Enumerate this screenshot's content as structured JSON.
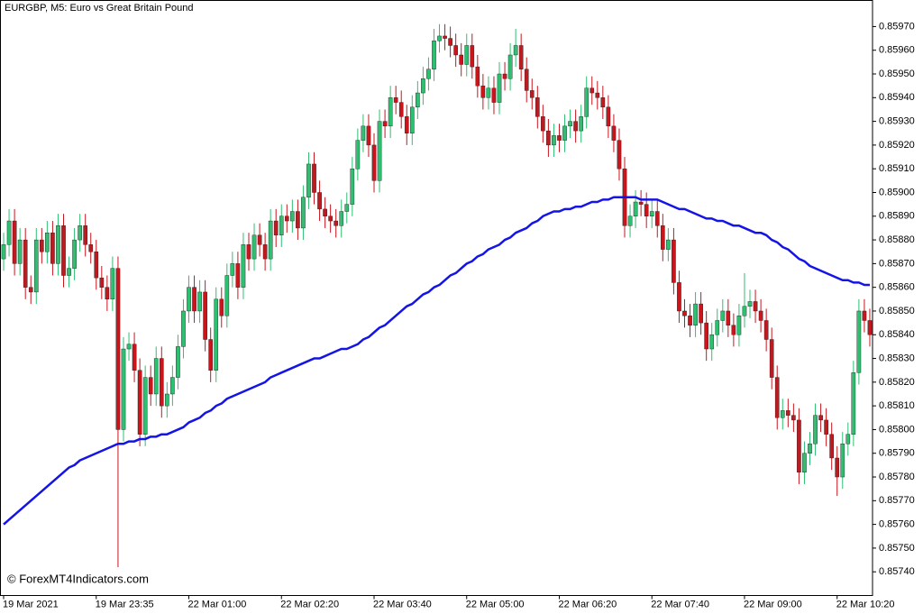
{
  "chart_data": {
    "type": "candlestick",
    "title": "EURGBP, M5:  Euro vs Great Britain Pound",
    "watermark": "© ForexMT4Indicators.com",
    "up_color": "#2fbf71",
    "down_color": "#c8161d",
    "ma_color": "#1414e6",
    "categories": [
      "19 Mar 2021",
      null,
      null,
      null,
      null,
      null,
      null,
      null,
      null,
      null,
      null,
      null,
      null,
      null,
      null,
      null,
      null,
      "19 Mar 23:35",
      null,
      null,
      null,
      null,
      null,
      null,
      null,
      null,
      null,
      null,
      null,
      null,
      null,
      null,
      null,
      null,
      "22 Mar 01:00",
      null,
      null,
      null,
      null,
      null,
      null,
      null,
      null,
      null,
      null,
      null,
      null,
      null,
      null,
      null,
      null,
      "22 Mar 02:20",
      null,
      null,
      null,
      null,
      null,
      null,
      null,
      null,
      null,
      null,
      null,
      null,
      null,
      null,
      null,
      null,
      "22 Mar 03:40",
      null,
      null,
      null,
      null,
      null,
      null,
      null,
      null,
      null,
      null,
      null,
      null,
      null,
      null,
      null,
      null,
      "22 Mar 05:00",
      null,
      null,
      null,
      null,
      null,
      null,
      null,
      null,
      null,
      null,
      null,
      null,
      null,
      null,
      null,
      null,
      "22 Mar 06:20",
      null,
      null,
      null,
      null,
      null,
      null,
      null,
      null,
      null,
      null,
      null,
      null,
      null,
      null,
      null,
      null,
      "22 Mar 07:40",
      null,
      null,
      null,
      null,
      null,
      null,
      null,
      null,
      null,
      null,
      null,
      null,
      null,
      null,
      null,
      null,
      "22 Mar 09:00",
      null,
      null,
      null,
      null,
      null,
      null,
      null,
      null,
      null,
      null,
      null,
      null,
      null,
      null,
      null,
      null,
      "22 Mar 10:20",
      null,
      null,
      null,
      null,
      null,
      null
    ],
    "open": [
      0.85872,
      0.85878,
      0.85888,
      0.8587,
      0.8588,
      0.8586,
      0.85858,
      0.8588,
      0.85875,
      0.85883,
      0.8587,
      0.85886,
      0.85865,
      0.85868,
      0.8588,
      0.85886,
      0.85878,
      0.85875,
      0.85864,
      0.8586,
      0.85855,
      0.85868,
      0.858,
      0.85834,
      0.85836,
      0.85825,
      0.85798,
      0.85822,
      0.85815,
      0.8583,
      0.8581,
      0.85815,
      0.85822,
      0.85835,
      0.8585,
      0.8586,
      0.8585,
      0.85858,
      0.85838,
      0.85825,
      0.85855,
      0.85848,
      0.85865,
      0.8587,
      0.8586,
      0.85878,
      0.85872,
      0.85882,
      0.85878,
      0.85872,
      0.85888,
      0.85882,
      0.8589,
      0.85888,
      0.85892,
      0.85885,
      0.85898,
      0.85912,
      0.859,
      0.85893,
      0.8589,
      0.85888,
      0.85886,
      0.85892,
      0.85895,
      0.8591,
      0.85922,
      0.85928,
      0.8592,
      0.85905,
      0.8593,
      0.85928,
      0.8594,
      0.85938,
      0.85932,
      0.85925,
      0.85936,
      0.85942,
      0.85948,
      0.85952,
      0.85964,
      0.85966,
      0.85965,
      0.85962,
      0.85958,
      0.85954,
      0.85962,
      0.85953,
      0.85945,
      0.8594,
      0.85944,
      0.85938,
      0.8595,
      0.85948,
      0.85958,
      0.85962,
      0.85952,
      0.85943,
      0.8594,
      0.85932,
      0.85926,
      0.8592,
      0.85924,
      0.85922,
      0.85928,
      0.8593,
      0.85926,
      0.85932,
      0.85944,
      0.85942,
      0.8594,
      0.85936,
      0.85928,
      0.85922,
      0.8591,
      0.85886,
      0.8589,
      0.85896,
      0.85895,
      0.8589,
      0.85892,
      0.85886,
      0.85876,
      0.8588,
      0.85862,
      0.8585,
      0.85848,
      0.85844,
      0.85853,
      0.85845,
      0.85834,
      0.8584,
      0.85846,
      0.8585,
      0.85844,
      0.8584,
      0.85848,
      0.85852,
      0.85854,
      0.8585,
      0.85846,
      0.85838,
      0.85822,
      0.85805,
      0.85808,
      0.85806,
      0.85804,
      0.85782,
      0.8579,
      0.85794,
      0.85806,
      0.85804,
      0.85798,
      0.85788,
      0.8578,
      0.85794,
      0.85798,
      0.85824,
      0.8585,
      0.85846
    ],
    "high": [
      0.85883,
      0.85893,
      0.85893,
      0.85885,
      0.85885,
      0.85865,
      0.85885,
      0.85885,
      0.85888,
      0.85888,
      0.85891,
      0.85891,
      0.85873,
      0.85885,
      0.85891,
      0.85891,
      0.85883,
      0.8588,
      0.85869,
      0.85865,
      0.85873,
      0.85873,
      0.85839,
      0.85841,
      0.85841,
      0.8583,
      0.85827,
      0.85827,
      0.85835,
      0.85835,
      0.8582,
      0.85827,
      0.8584,
      0.85855,
      0.85865,
      0.85865,
      0.85863,
      0.85863,
      0.85843,
      0.8586,
      0.8586,
      0.8587,
      0.85875,
      0.85875,
      0.85883,
      0.85883,
      0.85887,
      0.85887,
      0.85883,
      0.85893,
      0.85893,
      0.85895,
      0.85895,
      0.85897,
      0.85897,
      0.85903,
      0.85917,
      0.85917,
      0.85905,
      0.85898,
      0.85895,
      0.85893,
      0.85897,
      0.859,
      0.85915,
      0.85927,
      0.85933,
      0.85933,
      0.85925,
      0.85935,
      0.85935,
      0.85945,
      0.85945,
      0.85943,
      0.85937,
      0.85941,
      0.85947,
      0.85953,
      0.85957,
      0.85969,
      0.85971,
      0.85971,
      0.8597,
      0.85967,
      0.85963,
      0.85967,
      0.85967,
      0.85958,
      0.8595,
      0.85949,
      0.85949,
      0.85955,
      0.85955,
      0.85963,
      0.85969,
      0.85967,
      0.85957,
      0.85948,
      0.85945,
      0.85937,
      0.85931,
      0.85929,
      0.85929,
      0.85933,
      0.85935,
      0.85935,
      0.85937,
      0.85949,
      0.85949,
      0.85947,
      0.85945,
      0.85941,
      0.85933,
      0.85927,
      0.85915,
      0.85895,
      0.85901,
      0.85901,
      0.859,
      0.85897,
      0.85897,
      0.85891,
      0.85885,
      0.85885,
      0.85867,
      0.85855,
      0.85853,
      0.85858,
      0.85858,
      0.8585,
      0.85845,
      0.85851,
      0.85855,
      0.85855,
      0.85849,
      0.85853,
      0.85866,
      0.85859,
      0.85859,
      0.85855,
      0.85851,
      0.85843,
      0.85827,
      0.85813,
      0.85813,
      0.85811,
      0.85809,
      0.85795,
      0.85799,
      0.85811,
      0.85811,
      0.85809,
      0.85803,
      0.85793,
      0.85799,
      0.85803,
      0.85829,
      0.85855,
      0.85855,
      0.85851
    ],
    "low": [
      0.85867,
      0.85873,
      0.85865,
      0.85865,
      0.85855,
      0.85853,
      0.85853,
      0.8587,
      0.8587,
      0.85865,
      0.85865,
      0.8586,
      0.8586,
      0.85863,
      0.85875,
      0.85873,
      0.8587,
      0.85859,
      0.85855,
      0.8585,
      0.8585,
      0.85742,
      0.85795,
      0.85829,
      0.8582,
      0.85793,
      0.85793,
      0.8581,
      0.8581,
      0.85805,
      0.85805,
      0.8581,
      0.85817,
      0.8583,
      0.85845,
      0.85845,
      0.85845,
      0.85833,
      0.8582,
      0.8582,
      0.85843,
      0.85843,
      0.8586,
      0.85855,
      0.85855,
      0.85867,
      0.85867,
      0.85873,
      0.85867,
      0.85867,
      0.85877,
      0.85877,
      0.85883,
      0.85883,
      0.8588,
      0.8588,
      0.85893,
      0.85895,
      0.85888,
      0.85885,
      0.85883,
      0.85881,
      0.85881,
      0.85887,
      0.8589,
      0.85905,
      0.85917,
      0.85915,
      0.859,
      0.859,
      0.85923,
      0.85923,
      0.85933,
      0.85927,
      0.8592,
      0.8592,
      0.85931,
      0.85937,
      0.85943,
      0.85947,
      0.85959,
      0.8596,
      0.85957,
      0.85953,
      0.85949,
      0.85949,
      0.85948,
      0.8594,
      0.85935,
      0.85935,
      0.85933,
      0.85933,
      0.85943,
      0.85943,
      0.85953,
      0.85947,
      0.85938,
      0.85935,
      0.85927,
      0.85921,
      0.85915,
      0.85915,
      0.85917,
      0.85917,
      0.85923,
      0.85921,
      0.85921,
      0.85927,
      0.85937,
      0.85935,
      0.85931,
      0.85923,
      0.85917,
      0.85905,
      0.85881,
      0.85881,
      0.85885,
      0.8589,
      0.85885,
      0.85885,
      0.85881,
      0.85871,
      0.85871,
      0.85857,
      0.85845,
      0.85843,
      0.85839,
      0.85839,
      0.8584,
      0.85829,
      0.85829,
      0.85835,
      0.85841,
      0.85839,
      0.85835,
      0.85835,
      0.85843,
      0.85847,
      0.85845,
      0.85841,
      0.85833,
      0.85817,
      0.858,
      0.858,
      0.85801,
      0.85799,
      0.85777,
      0.85777,
      0.85785,
      0.85789,
      0.85799,
      0.85793,
      0.85783,
      0.85772,
      0.85775,
      0.85789,
      0.85793,
      0.85819,
      0.85841,
      0.85835
    ],
    "close": [
      0.85878,
      0.85888,
      0.8587,
      0.8588,
      0.8586,
      0.85858,
      0.8588,
      0.85875,
      0.85883,
      0.8587,
      0.85886,
      0.85865,
      0.85868,
      0.8588,
      0.85886,
      0.85878,
      0.85875,
      0.85864,
      0.8586,
      0.85855,
      0.85868,
      0.858,
      0.85834,
      0.85836,
      0.85825,
      0.85798,
      0.85822,
      0.85815,
      0.8583,
      0.8581,
      0.85815,
      0.85822,
      0.85835,
      0.8585,
      0.8586,
      0.8585,
      0.85858,
      0.85838,
      0.85825,
      0.85855,
      0.85848,
      0.85865,
      0.8587,
      0.8586,
      0.85878,
      0.85872,
      0.85882,
      0.85878,
      0.85872,
      0.85888,
      0.85882,
      0.8589,
      0.85888,
      0.85892,
      0.85885,
      0.85898,
      0.85912,
      0.859,
      0.85893,
      0.8589,
      0.85888,
      0.85886,
      0.85892,
      0.85895,
      0.8591,
      0.85922,
      0.85928,
      0.8592,
      0.85905,
      0.8593,
      0.85928,
      0.8594,
      0.85938,
      0.85932,
      0.85925,
      0.85936,
      0.85942,
      0.85948,
      0.85952,
      0.85964,
      0.85966,
      0.85965,
      0.85962,
      0.85958,
      0.85954,
      0.85962,
      0.85953,
      0.85945,
      0.8594,
      0.85944,
      0.85938,
      0.8595,
      0.85948,
      0.85958,
      0.85962,
      0.85952,
      0.85943,
      0.8594,
      0.85932,
      0.85926,
      0.8592,
      0.85924,
      0.85922,
      0.85928,
      0.8593,
      0.85926,
      0.85932,
      0.85944,
      0.85942,
      0.8594,
      0.85936,
      0.85928,
      0.85922,
      0.8591,
      0.85886,
      0.8589,
      0.85896,
      0.85895,
      0.8589,
      0.85892,
      0.85886,
      0.85876,
      0.8588,
      0.85862,
      0.8585,
      0.85848,
      0.85844,
      0.85853,
      0.85845,
      0.85834,
      0.8584,
      0.85846,
      0.8585,
      0.85844,
      0.8584,
      0.85848,
      0.85852,
      0.85854,
      0.8585,
      0.85846,
      0.85838,
      0.85822,
      0.85805,
      0.85808,
      0.85806,
      0.85804,
      0.85782,
      0.8579,
      0.85794,
      0.85806,
      0.85804,
      0.85798,
      0.85788,
      0.8578,
      0.85794,
      0.85798,
      0.85824,
      0.8585,
      0.85846,
      0.8584
    ],
    "ma": [
      0.8576,
      0.85762,
      0.85764,
      0.85766,
      0.85768,
      0.8577,
      0.85772,
      0.85774,
      0.85776,
      0.85778,
      0.8578,
      0.85782,
      0.85784,
      0.85785,
      0.85787,
      0.85788,
      0.85789,
      0.8579,
      0.85791,
      0.85792,
      0.85793,
      0.85794,
      0.85794,
      0.85795,
      0.85795,
      0.85796,
      0.85796,
      0.85797,
      0.85797,
      0.85798,
      0.85798,
      0.85799,
      0.858,
      0.85801,
      0.85803,
      0.85804,
      0.85805,
      0.85807,
      0.85808,
      0.8581,
      0.85811,
      0.85813,
      0.85814,
      0.85815,
      0.85816,
      0.85817,
      0.85818,
      0.85819,
      0.8582,
      0.85822,
      0.85823,
      0.85824,
      0.85825,
      0.85826,
      0.85827,
      0.85828,
      0.85829,
      0.8583,
      0.8583,
      0.85831,
      0.85832,
      0.85833,
      0.85834,
      0.85834,
      0.85835,
      0.85836,
      0.85838,
      0.85839,
      0.85841,
      0.85843,
      0.85844,
      0.85846,
      0.85848,
      0.8585,
      0.85852,
      0.85853,
      0.85855,
      0.85857,
      0.85858,
      0.8586,
      0.85861,
      0.85863,
      0.85865,
      0.85866,
      0.85868,
      0.8587,
      0.85871,
      0.85873,
      0.85874,
      0.85876,
      0.85877,
      0.85878,
      0.8588,
      0.85881,
      0.85883,
      0.85884,
      0.85885,
      0.85887,
      0.85888,
      0.8589,
      0.85891,
      0.85892,
      0.85892,
      0.85893,
      0.85893,
      0.85894,
      0.85894,
      0.85895,
      0.85896,
      0.85896,
      0.85897,
      0.85897,
      0.85898,
      0.85898,
      0.85898,
      0.85898,
      0.85898,
      0.85897,
      0.85897,
      0.85897,
      0.85897,
      0.85896,
      0.85895,
      0.85894,
      0.85893,
      0.85893,
      0.85892,
      0.85891,
      0.8589,
      0.85889,
      0.85889,
      0.85888,
      0.85888,
      0.85887,
      0.85886,
      0.85886,
      0.85885,
      0.85884,
      0.85883,
      0.85883,
      0.85882,
      0.8588,
      0.85879,
      0.85877,
      0.85876,
      0.85874,
      0.85872,
      0.85871,
      0.85869,
      0.85868,
      0.85867,
      0.85866,
      0.85865,
      0.85864,
      0.85863,
      0.85863,
      0.85862,
      0.85862,
      0.85861,
      0.85861
    ],
    "ylim": [
      0.8573,
      0.85981
    ],
    "yticks": [
      {
        "value": 0.8574,
        "label": "0.85740"
      },
      {
        "value": 0.8575,
        "label": "0.85750"
      },
      {
        "value": 0.8576,
        "label": "0.85760"
      },
      {
        "value": 0.8577,
        "label": "0.85770"
      },
      {
        "value": 0.8578,
        "label": "0.85780"
      },
      {
        "value": 0.8579,
        "label": "0.85790"
      },
      {
        "value": 0.858,
        "label": "0.85800"
      },
      {
        "value": 0.8581,
        "label": "0.85810"
      },
      {
        "value": 0.8582,
        "label": "0.85820"
      },
      {
        "value": 0.8583,
        "label": "0.85830"
      },
      {
        "value": 0.8584,
        "label": "0.85840"
      },
      {
        "value": 0.8585,
        "label": "0.85850"
      },
      {
        "value": 0.8586,
        "label": "0.85860"
      },
      {
        "value": 0.8587,
        "label": "0.85870"
      },
      {
        "value": 0.8588,
        "label": "0.85880"
      },
      {
        "value": 0.8589,
        "label": "0.85890"
      },
      {
        "value": 0.859,
        "label": "0.85900"
      },
      {
        "value": 0.8591,
        "label": "0.85910"
      },
      {
        "value": 0.8592,
        "label": "0.85920"
      },
      {
        "value": 0.8593,
        "label": "0.85930"
      },
      {
        "value": 0.8594,
        "label": "0.85940"
      },
      {
        "value": 0.8595,
        "label": "0.85950"
      },
      {
        "value": 0.8596,
        "label": "0.85960"
      },
      {
        "value": 0.8597,
        "label": "0.85970"
      }
    ]
  }
}
